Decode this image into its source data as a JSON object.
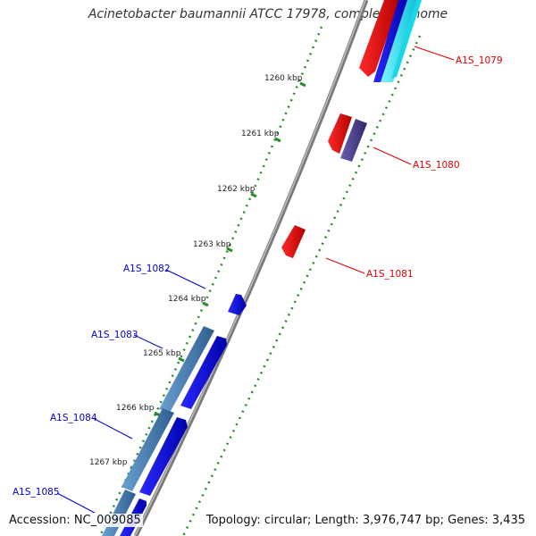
{
  "title": "Acinetobacter baumannii ATCC 17978, complete genome",
  "accession": "Accession: NC_009085",
  "summary": "Topology: circular; Length: 3,976,747 bp; Genes: 3,435",
  "ticks": [
    "1260 kbp",
    "1261 kbp",
    "1262 kbp",
    "1263 kbp",
    "1264 kbp",
    "1265 kbp",
    "1266 kbp",
    "1267 kbp"
  ],
  "genes": [
    {
      "label": "A1S_1079",
      "color": "#dd0000"
    },
    {
      "label": "A1S_1080",
      "color": "#dd0000"
    },
    {
      "label": "A1S_1081",
      "color": "#dd0000"
    },
    {
      "label": "A1S_1082",
      "color": "#0000cc"
    },
    {
      "label": "A1S_1083",
      "color": "#0000cc"
    },
    {
      "label": "A1S_1084",
      "color": "#0000cc"
    },
    {
      "label": "A1S_1085",
      "color": "#0000cc"
    }
  ],
  "colors": {
    "forward_cds": "#ee0000",
    "reverse_cds": "#0000ee",
    "rna": "#00e5ff",
    "blast_hit": "#4a7fb5",
    "purple_feature": "#4b3c8c",
    "backbone": "#808080",
    "dots": "#2a8a2a"
  }
}
